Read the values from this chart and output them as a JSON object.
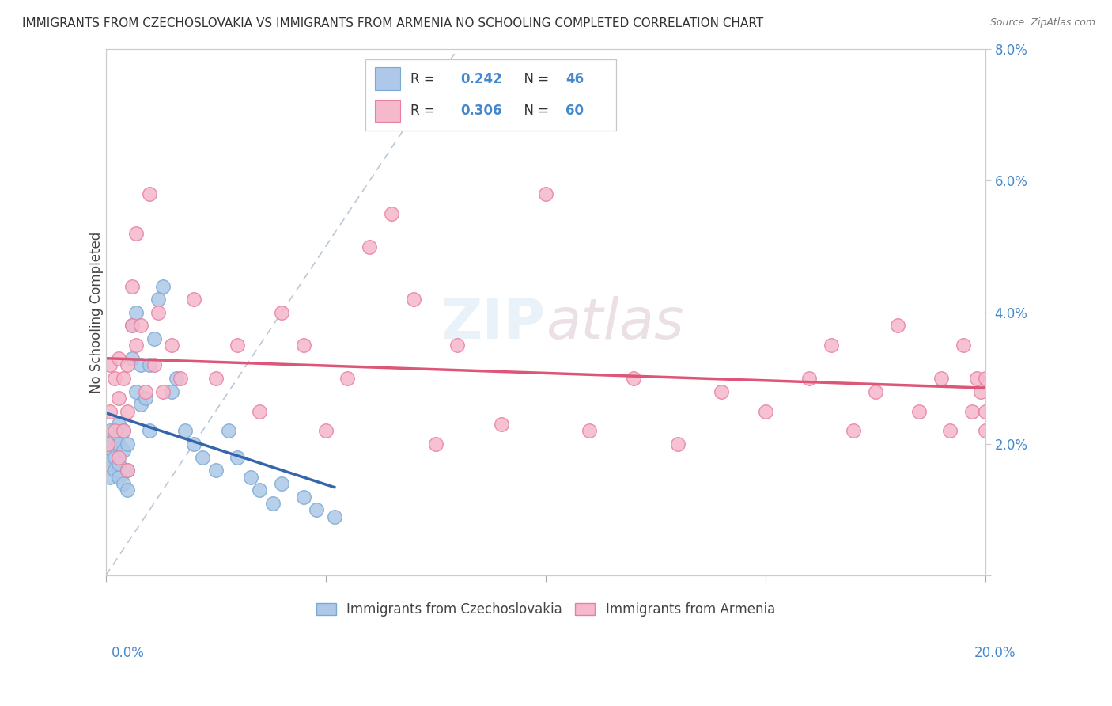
{
  "title": "IMMIGRANTS FROM CZECHOSLOVAKIA VS IMMIGRANTS FROM ARMENIA NO SCHOOLING COMPLETED CORRELATION CHART",
  "source": "Source: ZipAtlas.com",
  "ylabel": "No Schooling Completed",
  "legend_blue_R": "0.242",
  "legend_blue_N": "46",
  "legend_pink_R": "0.306",
  "legend_pink_N": "60",
  "blue_color": "#adc8e8",
  "blue_edge": "#7aaad4",
  "pink_color": "#f5b8cc",
  "pink_edge": "#e8809c",
  "blue_line_color": "#3366aa",
  "pink_line_color": "#dd5577",
  "diag_line_color": "#aabbcc",
  "background_color": "#ffffff",
  "grid_color": "#cccccc",
  "title_color": "#333333",
  "axis_label_color": "#4488cc",
  "xmin": 0.0,
  "xmax": 0.2,
  "ymin": 0.0,
  "ymax": 0.08,
  "blue_x": [
    0.0005,
    0.0008,
    0.001,
    0.001,
    0.001,
    0.0015,
    0.002,
    0.002,
    0.002,
    0.003,
    0.003,
    0.003,
    0.003,
    0.004,
    0.004,
    0.004,
    0.005,
    0.005,
    0.005,
    0.006,
    0.006,
    0.007,
    0.007,
    0.008,
    0.008,
    0.009,
    0.01,
    0.01,
    0.011,
    0.012,
    0.013,
    0.015,
    0.016,
    0.018,
    0.02,
    0.022,
    0.025,
    0.028,
    0.03,
    0.033,
    0.035,
    0.038,
    0.04,
    0.045,
    0.048,
    0.052
  ],
  "blue_y": [
    0.02,
    0.018,
    0.017,
    0.022,
    0.015,
    0.019,
    0.016,
    0.018,
    0.021,
    0.015,
    0.017,
    0.02,
    0.023,
    0.014,
    0.019,
    0.022,
    0.013,
    0.016,
    0.02,
    0.033,
    0.038,
    0.028,
    0.04,
    0.026,
    0.032,
    0.027,
    0.022,
    0.032,
    0.036,
    0.042,
    0.044,
    0.028,
    0.03,
    0.022,
    0.02,
    0.018,
    0.016,
    0.022,
    0.018,
    0.015,
    0.013,
    0.011,
    0.014,
    0.012,
    0.01,
    0.009
  ],
  "pink_x": [
    0.0005,
    0.001,
    0.001,
    0.002,
    0.002,
    0.003,
    0.003,
    0.003,
    0.004,
    0.004,
    0.005,
    0.005,
    0.005,
    0.006,
    0.006,
    0.007,
    0.007,
    0.008,
    0.009,
    0.01,
    0.011,
    0.012,
    0.013,
    0.015,
    0.017,
    0.02,
    0.025,
    0.03,
    0.035,
    0.04,
    0.045,
    0.05,
    0.055,
    0.06,
    0.065,
    0.07,
    0.075,
    0.08,
    0.09,
    0.1,
    0.11,
    0.12,
    0.13,
    0.14,
    0.15,
    0.16,
    0.165,
    0.17,
    0.175,
    0.18,
    0.185,
    0.19,
    0.192,
    0.195,
    0.197,
    0.198,
    0.199,
    0.2,
    0.2,
    0.2
  ],
  "pink_y": [
    0.02,
    0.025,
    0.032,
    0.022,
    0.03,
    0.018,
    0.027,
    0.033,
    0.022,
    0.03,
    0.016,
    0.025,
    0.032,
    0.038,
    0.044,
    0.035,
    0.052,
    0.038,
    0.028,
    0.058,
    0.032,
    0.04,
    0.028,
    0.035,
    0.03,
    0.042,
    0.03,
    0.035,
    0.025,
    0.04,
    0.035,
    0.022,
    0.03,
    0.05,
    0.055,
    0.042,
    0.02,
    0.035,
    0.023,
    0.058,
    0.022,
    0.03,
    0.02,
    0.028,
    0.025,
    0.03,
    0.035,
    0.022,
    0.028,
    0.038,
    0.025,
    0.03,
    0.022,
    0.035,
    0.025,
    0.03,
    0.028,
    0.022,
    0.03,
    0.025
  ]
}
